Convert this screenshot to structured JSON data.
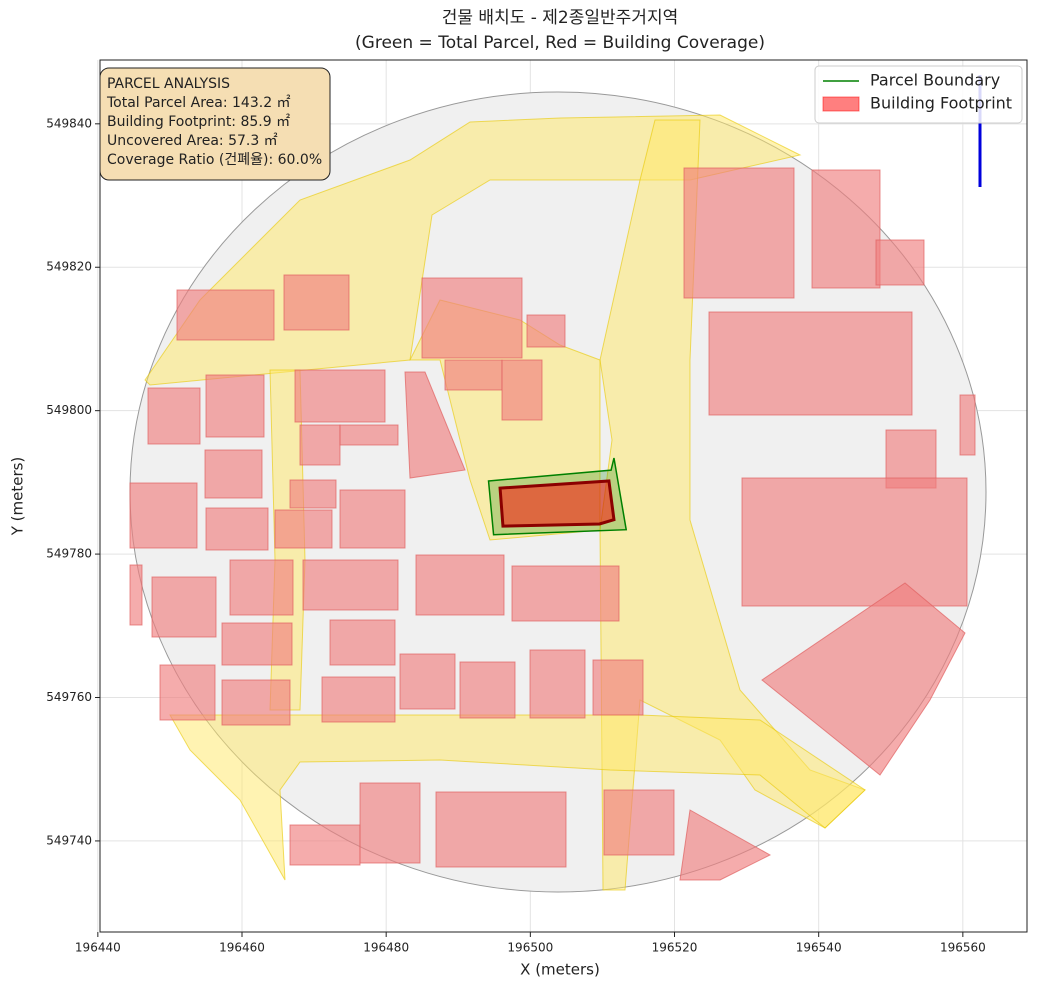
{
  "chart_data": {
    "type": "map",
    "title": "건물 배치도 - 제2종일반주거지역",
    "subtitle": "(Green = Total Parcel, Red = Building Coverage)",
    "xlabel": "X (meters)",
    "ylabel": "Y (meters)",
    "xlim": [
      196440.3,
      196568.9
    ],
    "ylim": [
      549727.3,
      549848.9
    ],
    "xticks": [
      196440,
      196460,
      196480,
      196500,
      196520,
      196540,
      196560
    ],
    "yticks": [
      549740,
      549760,
      549780,
      549800,
      549820,
      549840
    ],
    "grid": true,
    "legend": "upper right",
    "series": [
      {
        "name": "Parcel Boundary",
        "color": "#008000",
        "x": [
          196494.2,
          196511.2,
          196511.6,
          196513.3,
          196494.9
        ],
        "y": [
          549790.2,
          549791.7,
          549793.4,
          549783.4,
          549782.7
        ]
      },
      {
        "name": "Building Footprint",
        "color": "#ff0000",
        "x": [
          196495.8,
          196510.9,
          196511.6,
          196509.6,
          196496.2
        ],
        "y": [
          549789.2,
          549790.2,
          549784.8,
          549784.2,
          549783.9
        ]
      }
    ],
    "annotation": {
      "title": "PARCEL ANALYSIS",
      "lines": [
        "Total Parcel Area: 143.2 ㎡",
        "Building Footprint: 85.9 ㎡",
        "Uncovered Area: 57.3 ㎡",
        "Coverage Ratio (건폐율): 60.0%"
      ]
    }
  }
}
